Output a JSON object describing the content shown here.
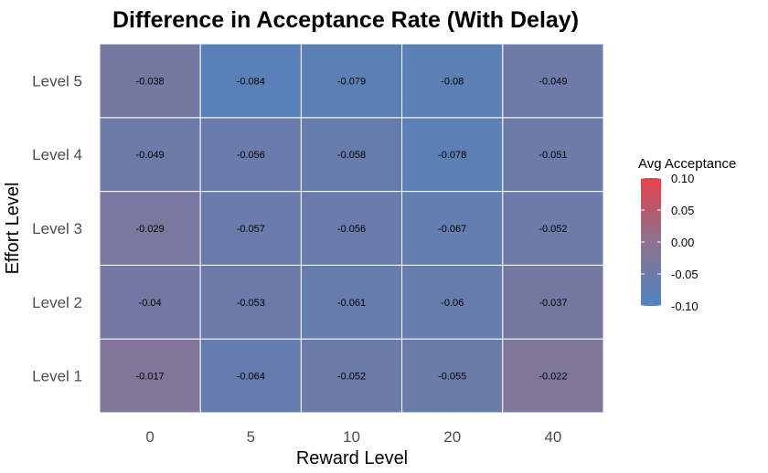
{
  "chart_data": {
    "type": "heatmap",
    "title": "Difference in Acceptance Rate (With Delay)",
    "xlabel": "Reward Level",
    "ylabel": "Effort Level",
    "x_categories": [
      "0",
      "5",
      "10",
      "20",
      "40"
    ],
    "y_categories": [
      "Level 1",
      "Level 2",
      "Level 3",
      "Level 4",
      "Level 5"
    ],
    "values": [
      [
        -0.017,
        -0.064,
        -0.052,
        -0.055,
        -0.022
      ],
      [
        -0.04,
        -0.053,
        -0.061,
        -0.06,
        -0.037
      ],
      [
        -0.029,
        -0.057,
        -0.056,
        -0.067,
        -0.052
      ],
      [
        -0.049,
        -0.056,
        -0.058,
        -0.078,
        -0.051
      ],
      [
        -0.038,
        -0.084,
        -0.079,
        -0.08,
        -0.049
      ]
    ],
    "value_labels": [
      [
        "-0.017",
        "-0.064",
        "-0.052",
        "-0.055",
        "-0.022"
      ],
      [
        "-0.04",
        "-0.053",
        "-0.061",
        "-0.06",
        "-0.037"
      ],
      [
        "-0.029",
        "-0.057",
        "-0.056",
        "-0.067",
        "-0.052"
      ],
      [
        "-0.049",
        "-0.056",
        "-0.058",
        "-0.078",
        "-0.051"
      ],
      [
        "-0.038",
        "-0.084",
        "-0.079",
        "-0.08",
        "-0.049"
      ]
    ],
    "legend": {
      "title": "Avg Acceptance",
      "placement": "right",
      "range": [
        -0.1,
        0.1
      ],
      "ticks": [
        "0.10",
        "0.05",
        "0.00",
        "-0.05",
        "-0.10"
      ],
      "tick_values": [
        0.1,
        0.05,
        0.0,
        -0.05,
        -0.1
      ]
    },
    "colors": {
      "low": "#4f83bf",
      "mid": "#8b7391",
      "high": "#e8414a"
    },
    "grid": true
  }
}
